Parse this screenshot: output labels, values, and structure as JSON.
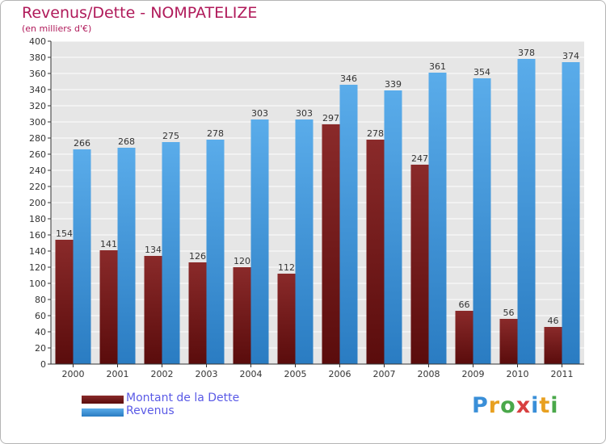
{
  "title": "Revenus/Dette - NOMPATELIZE",
  "subtitle": "(en milliers d'€)",
  "logo_text": "Proxiti",
  "chart_data": {
    "type": "bar",
    "title": "Revenus/Dette - NOMPATELIZE",
    "subtitle": "(en milliers d'€)",
    "xlabel": "",
    "ylabel": "",
    "categories": [
      "2000",
      "2001",
      "2002",
      "2003",
      "2004",
      "2005",
      "2006",
      "2007",
      "2008",
      "2009",
      "2010",
      "2011"
    ],
    "series": [
      {
        "name": "Montant de la Dette",
        "color": "#7a1a1a",
        "values": [
          154,
          141,
          134,
          126,
          120,
          112,
          297,
          278,
          247,
          66,
          56,
          46
        ]
      },
      {
        "name": "Revenus",
        "color": "#3f97dc",
        "values": [
          266,
          268,
          275,
          278,
          303,
          303,
          346,
          339,
          361,
          354,
          378,
          374
        ]
      }
    ],
    "ylim": [
      0,
      400
    ],
    "ytick_step": 20,
    "grid": true,
    "legend": "bottom-left"
  },
  "colors": {
    "title": "#b01a5a",
    "legend_text": "#5a5ae6",
    "plot_background": "#e6e6e6",
    "grid": "#ffffff",
    "dette_light": "#8a2a2a",
    "dette_dark": "#5a0c0c",
    "revenus_light": "#5aacea",
    "revenus_dark": "#2a7cc2"
  }
}
